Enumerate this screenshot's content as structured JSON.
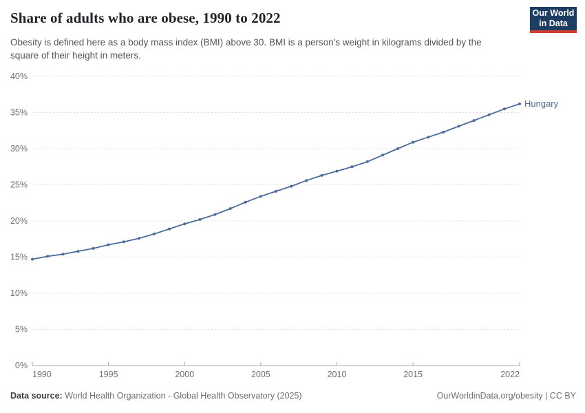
{
  "header": {
    "title": "Share of adults who are obese, 1990 to 2022",
    "subtitle": "Obesity is defined here as a body mass index (BMI) above 30. BMI is a person's weight in kilograms divided by the square of their height in meters.",
    "logo_line1": "Our World",
    "logo_line2": "in Data"
  },
  "chart_data": {
    "type": "line",
    "title": "Share of adults who are obese, 1990 to 2022",
    "xlabel": "",
    "ylabel": "",
    "xlim": [
      1990,
      2022
    ],
    "ylim": [
      0,
      40
    ],
    "x_ticks": [
      1990,
      1995,
      2000,
      2005,
      2010,
      2015,
      2022
    ],
    "y_ticks": [
      0,
      5,
      10,
      15,
      20,
      25,
      30,
      35,
      40
    ],
    "y_tick_suffix": "%",
    "grid": "horizontal-dashed",
    "legend_position": "end-of-line-label",
    "x": [
      1990,
      1991,
      1992,
      1993,
      1994,
      1995,
      1996,
      1997,
      1998,
      1999,
      2000,
      2001,
      2002,
      2003,
      2004,
      2005,
      2006,
      2007,
      2008,
      2009,
      2010,
      2011,
      2012,
      2013,
      2014,
      2015,
      2016,
      2017,
      2018,
      2019,
      2020,
      2021,
      2022
    ],
    "series": [
      {
        "name": "Hungary",
        "color": "#4c6a9c",
        "values": [
          14.7,
          15.1,
          15.4,
          15.8,
          16.2,
          16.7,
          17.1,
          17.6,
          18.2,
          18.9,
          19.6,
          20.2,
          20.9,
          21.7,
          22.6,
          23.4,
          24.1,
          24.8,
          25.6,
          26.3,
          26.9,
          27.5,
          28.2,
          29.1,
          30.0,
          30.9,
          31.6,
          32.3,
          33.1,
          33.9,
          34.7,
          35.5,
          36.2
        ]
      }
    ]
  },
  "footer": {
    "datasource_label": "Data source:",
    "datasource_value": "World Health Organization - Global Health Observatory (2025)",
    "credit": "OurWorldinData.org/obesity | CC BY"
  },
  "colors": {
    "line": "#4c6a9c",
    "gridline": "#dcdcdc",
    "axis_line": "#a5a5a5",
    "axis_text": "#6e6e6e",
    "title_text": "#222228",
    "subtitle_text": "#555555",
    "logo_bg": "#1d3d63",
    "logo_accent": "#d13d33",
    "footer_text": "#6e6e6e",
    "footer_label_text": "#3f3f3f"
  }
}
